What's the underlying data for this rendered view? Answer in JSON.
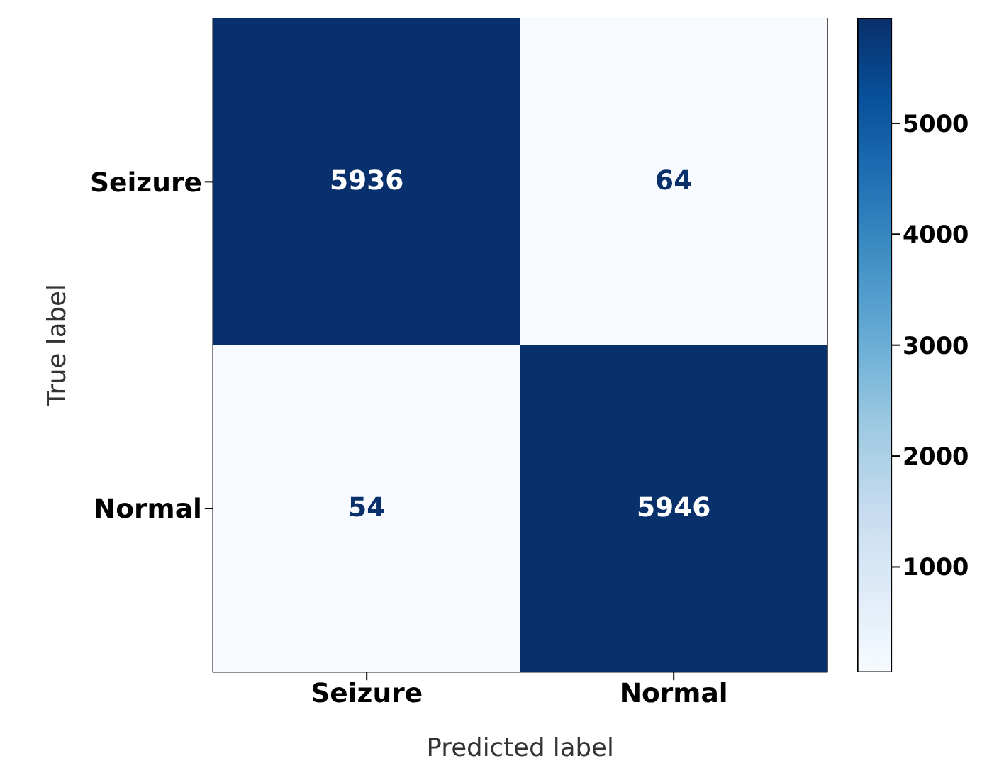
{
  "chart_data": {
    "type": "heatmap",
    "xlabel": "Predicted label",
    "ylabel": "True label",
    "categories": [
      "Seizure",
      "Normal"
    ],
    "y_categories": [
      "Seizure",
      "Normal"
    ],
    "cells": [
      [
        5936,
        64
      ],
      [
        54,
        5946
      ]
    ],
    "clim": [
      54,
      5946
    ],
    "cticks": [
      1000,
      2000,
      3000,
      4000,
      5000
    ],
    "data_labels": true
  }
}
